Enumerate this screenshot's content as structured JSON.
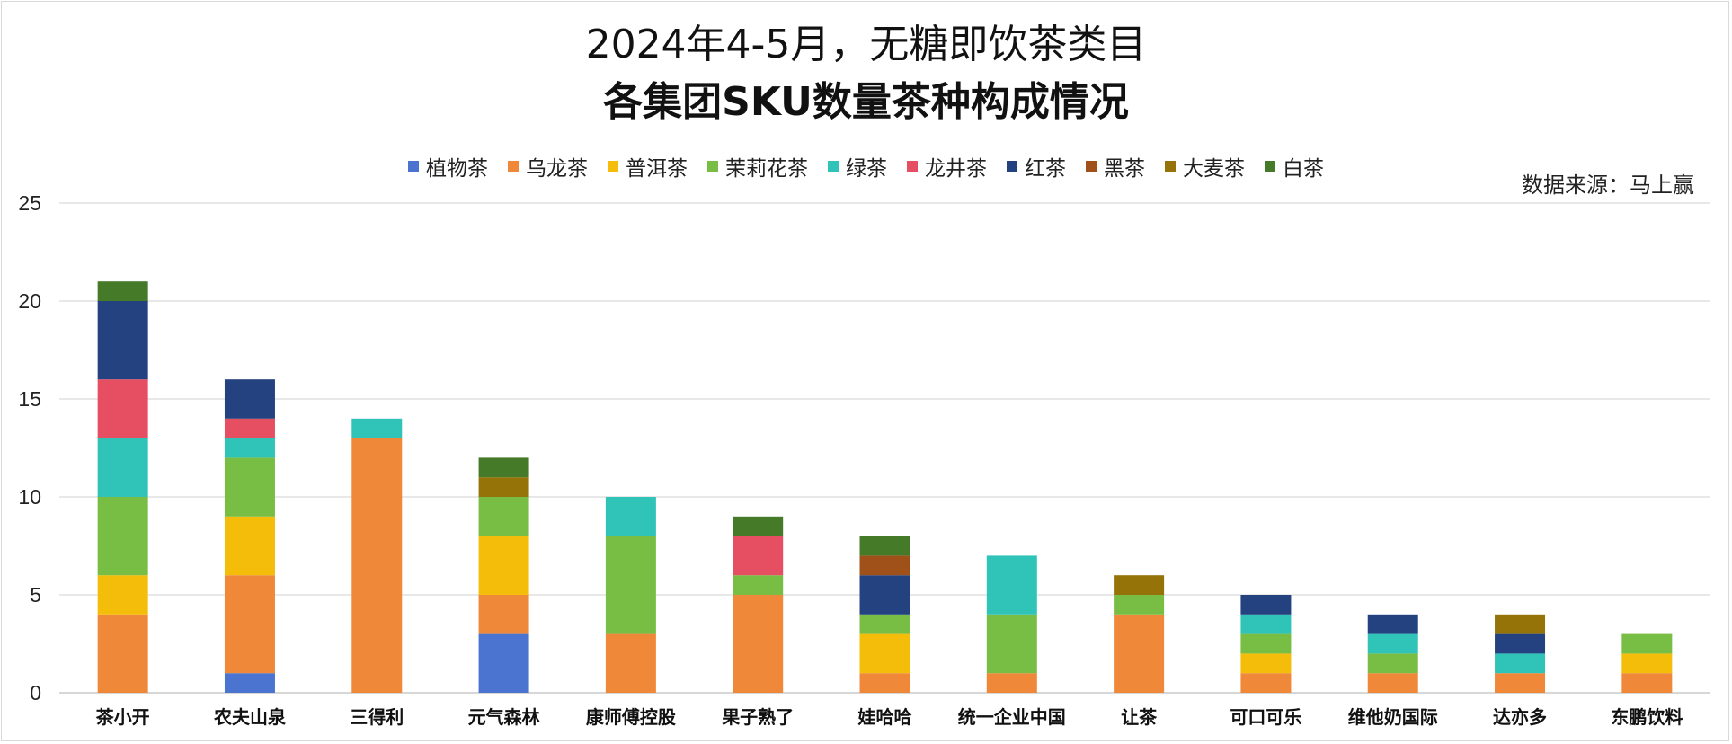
{
  "title_line1": "2024年4-5月，无糖即饮茶类目",
  "title_line2": "各集团SKU数量茶种构成情况",
  "source": "数据来源：马上赢",
  "chart_data": {
    "type": "bar",
    "stacked": true,
    "title": "2024年4-5月，无糖即饮茶类目 各集团SKU数量茶种构成情况",
    "xlabel": "",
    "ylabel": "",
    "ylim": [
      0,
      25
    ],
    "yticks": [
      0,
      5,
      10,
      15,
      20,
      25
    ],
    "grid": true,
    "legend_position": "top",
    "categories": [
      "茶小开",
      "农夫山泉",
      "三得利",
      "元气森林",
      "康师傅控股",
      "果子熟了",
      "娃哈哈",
      "统一企业中国",
      "让茶",
      "可口可乐",
      "维他奶国际",
      "达亦多",
      "东鹏饮料"
    ],
    "series": [
      {
        "name": "植物茶",
        "color": "#4a74d0",
        "values": [
          0,
          1,
          0,
          3,
          0,
          0,
          0,
          0,
          0,
          0,
          0,
          0,
          0
        ]
      },
      {
        "name": "乌龙茶",
        "color": "#f0883a",
        "values": [
          4,
          5,
          13,
          2,
          3,
          5,
          1,
          1,
          4,
          1,
          1,
          1,
          1
        ]
      },
      {
        "name": "普洱茶",
        "color": "#f4bd0a",
        "values": [
          2,
          3,
          0,
          3,
          0,
          0,
          2,
          0,
          0,
          1,
          0,
          0,
          1
        ]
      },
      {
        "name": "茉莉花茶",
        "color": "#78bd44",
        "values": [
          4,
          3,
          0,
          2,
          5,
          1,
          1,
          3,
          1,
          1,
          1,
          0,
          1
        ]
      },
      {
        "name": "绿茶",
        "color": "#30c4b8",
        "values": [
          3,
          1,
          1,
          0,
          2,
          0,
          0,
          3,
          0,
          1,
          1,
          1,
          0
        ]
      },
      {
        "name": "龙井茶",
        "color": "#e64f62",
        "values": [
          3,
          1,
          0,
          0,
          0,
          2,
          0,
          0,
          0,
          0,
          0,
          0,
          0
        ]
      },
      {
        "name": "红茶",
        "color": "#24427f",
        "values": [
          4,
          2,
          0,
          0,
          0,
          0,
          2,
          0,
          0,
          1,
          1,
          1,
          0
        ]
      },
      {
        "name": "黑茶",
        "color": "#a0511a",
        "values": [
          0,
          0,
          0,
          0,
          0,
          0,
          1,
          0,
          0,
          0,
          0,
          0,
          0
        ]
      },
      {
        "name": "大麦茶",
        "color": "#957309",
        "values": [
          0,
          0,
          0,
          1,
          0,
          0,
          0,
          0,
          1,
          0,
          0,
          1,
          0
        ]
      },
      {
        "name": "白茶",
        "color": "#447a28",
        "values": [
          1,
          0,
          0,
          1,
          0,
          1,
          1,
          0,
          0,
          0,
          0,
          0,
          0
        ]
      }
    ]
  }
}
